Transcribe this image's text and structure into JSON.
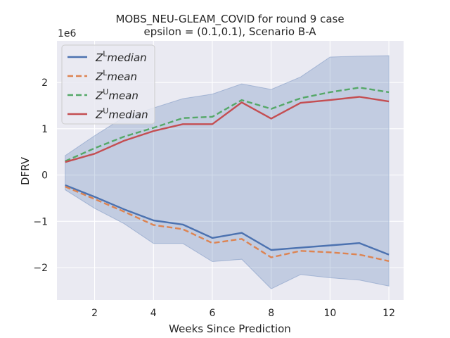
{
  "chart_data": {
    "type": "line",
    "title_line1": "MOBS_NEU-GLEAM_COVID for round 9 case",
    "title_line2": "epsilon = (0.1,0.1), Scenario B-A",
    "xlabel": "Weeks Since Prediction",
    "ylabel": "DFRV",
    "y_offset_label": "1e6",
    "xlim": [
      0.72,
      12.5
    ],
    "ylim": [
      -2.7,
      2.9
    ],
    "x_ticks": [
      2,
      4,
      6,
      8,
      10,
      12
    ],
    "x_tick_labels": [
      "2",
      "4",
      "6",
      "8",
      "10",
      "12"
    ],
    "y_ticks": [
      -2,
      -1,
      0,
      1,
      2
    ],
    "y_tick_labels": [
      "−2",
      "−1",
      "0",
      "1",
      "2"
    ],
    "grid": true,
    "background": "#eaeaf2",
    "legend_position": "upper-left",
    "x": [
      1,
      2,
      3,
      4,
      5,
      6,
      7,
      8,
      9,
      10,
      11,
      12
    ],
    "band": {
      "color": "#4c72b0",
      "upper": [
        0.42,
        0.85,
        1.25,
        1.45,
        1.65,
        1.75,
        1.97,
        1.85,
        2.12,
        2.55,
        2.57,
        2.58
      ],
      "lower": [
        -0.32,
        -0.72,
        -1.05,
        -1.48,
        -1.48,
        -1.87,
        -1.82,
        -2.46,
        -2.15,
        -2.22,
        -2.27,
        -2.4
      ]
    },
    "series": [
      {
        "name": "Z^L median",
        "base": "Z",
        "sup": "L",
        "stat": "median",
        "color": "#4c72b0",
        "dashed": false,
        "values": [
          -0.22,
          -0.47,
          -0.74,
          -0.98,
          -1.07,
          -1.36,
          -1.25,
          -1.62,
          -1.57,
          -1.52,
          -1.47,
          -1.72
        ]
      },
      {
        "name": "Z^L mean",
        "base": "Z",
        "sup": "L",
        "stat": "mean",
        "color": "#dd8452",
        "dashed": true,
        "values": [
          -0.25,
          -0.52,
          -0.79,
          -1.08,
          -1.17,
          -1.47,
          -1.38,
          -1.78,
          -1.64,
          -1.67,
          -1.72,
          -1.86
        ]
      },
      {
        "name": "Z^U mean",
        "base": "Z",
        "sup": "U",
        "stat": "mean",
        "color": "#55a868",
        "dashed": true,
        "values": [
          0.3,
          0.58,
          0.83,
          1.02,
          1.23,
          1.26,
          1.62,
          1.43,
          1.66,
          1.79,
          1.89,
          1.79
        ]
      },
      {
        "name": "Z^U median",
        "base": "Z",
        "sup": "U",
        "stat": "median",
        "color": "#c44e52",
        "dashed": false,
        "values": [
          0.28,
          0.46,
          0.74,
          0.95,
          1.1,
          1.1,
          1.57,
          1.22,
          1.56,
          1.62,
          1.69,
          1.59
        ]
      }
    ]
  }
}
